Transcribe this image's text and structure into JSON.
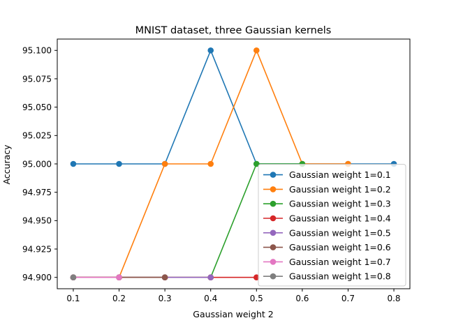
{
  "chart_data": {
    "type": "line",
    "title": "MNIST dataset, three Gaussian kernels",
    "xlabel": "Gaussian weight 2",
    "ylabel": "Accuracy",
    "x": [
      0.1,
      0.2,
      0.3,
      0.4,
      0.5,
      0.6,
      0.7,
      0.8
    ],
    "xticks": [
      "0.1",
      "0.2",
      "0.3",
      "0.4",
      "0.5",
      "0.6",
      "0.7",
      "0.8"
    ],
    "xlim": [
      0.065,
      0.835
    ],
    "yticks": [
      "94.900",
      "94.925",
      "94.950",
      "94.975",
      "95.000",
      "95.025",
      "95.050",
      "95.075",
      "95.100"
    ],
    "ylim": [
      94.89,
      95.11
    ],
    "grid": false,
    "legend_position": "lower right",
    "series": [
      {
        "name": "Gaussian weight 1=0.1",
        "color": "#1f77b4",
        "x": [
          0.1,
          0.2,
          0.3,
          0.4,
          0.5,
          0.6,
          0.7,
          0.8
        ],
        "values": [
          95.0,
          95.0,
          95.0,
          95.1,
          95.0,
          95.0,
          95.0,
          95.0
        ]
      },
      {
        "name": "Gaussian weight 1=0.2",
        "color": "#ff7f0e",
        "x": [
          0.1,
          0.2,
          0.3,
          0.4,
          0.5,
          0.6,
          0.7
        ],
        "values": [
          94.9,
          94.9,
          95.0,
          95.0,
          95.1,
          95.0,
          95.0
        ]
      },
      {
        "name": "Gaussian weight 1=0.3",
        "color": "#2ca02c",
        "x": [
          0.1,
          0.2,
          0.3,
          0.4,
          0.5,
          0.6
        ],
        "values": [
          94.9,
          94.9,
          94.9,
          94.9,
          95.0,
          95.0
        ]
      },
      {
        "name": "Gaussian weight 1=0.4",
        "color": "#d62728",
        "x": [
          0.1,
          0.2,
          0.3,
          0.4,
          0.5
        ],
        "values": [
          94.9,
          94.9,
          94.9,
          94.9,
          94.9
        ]
      },
      {
        "name": "Gaussian weight 1=0.5",
        "color": "#9467bd",
        "x": [
          0.1,
          0.2,
          0.3,
          0.4
        ],
        "values": [
          94.9,
          94.9,
          94.9,
          94.9
        ]
      },
      {
        "name": "Gaussian weight 1=0.6",
        "color": "#8c564b",
        "x": [
          0.1,
          0.2,
          0.3
        ],
        "values": [
          94.9,
          94.9,
          94.9
        ]
      },
      {
        "name": "Gaussian weight 1=0.7",
        "color": "#e377c2",
        "x": [
          0.1,
          0.2
        ],
        "values": [
          94.9,
          94.9
        ]
      },
      {
        "name": "Gaussian weight 1=0.8",
        "color": "#7f7f7f",
        "x": [
          0.1
        ],
        "values": [
          94.9
        ]
      }
    ]
  }
}
